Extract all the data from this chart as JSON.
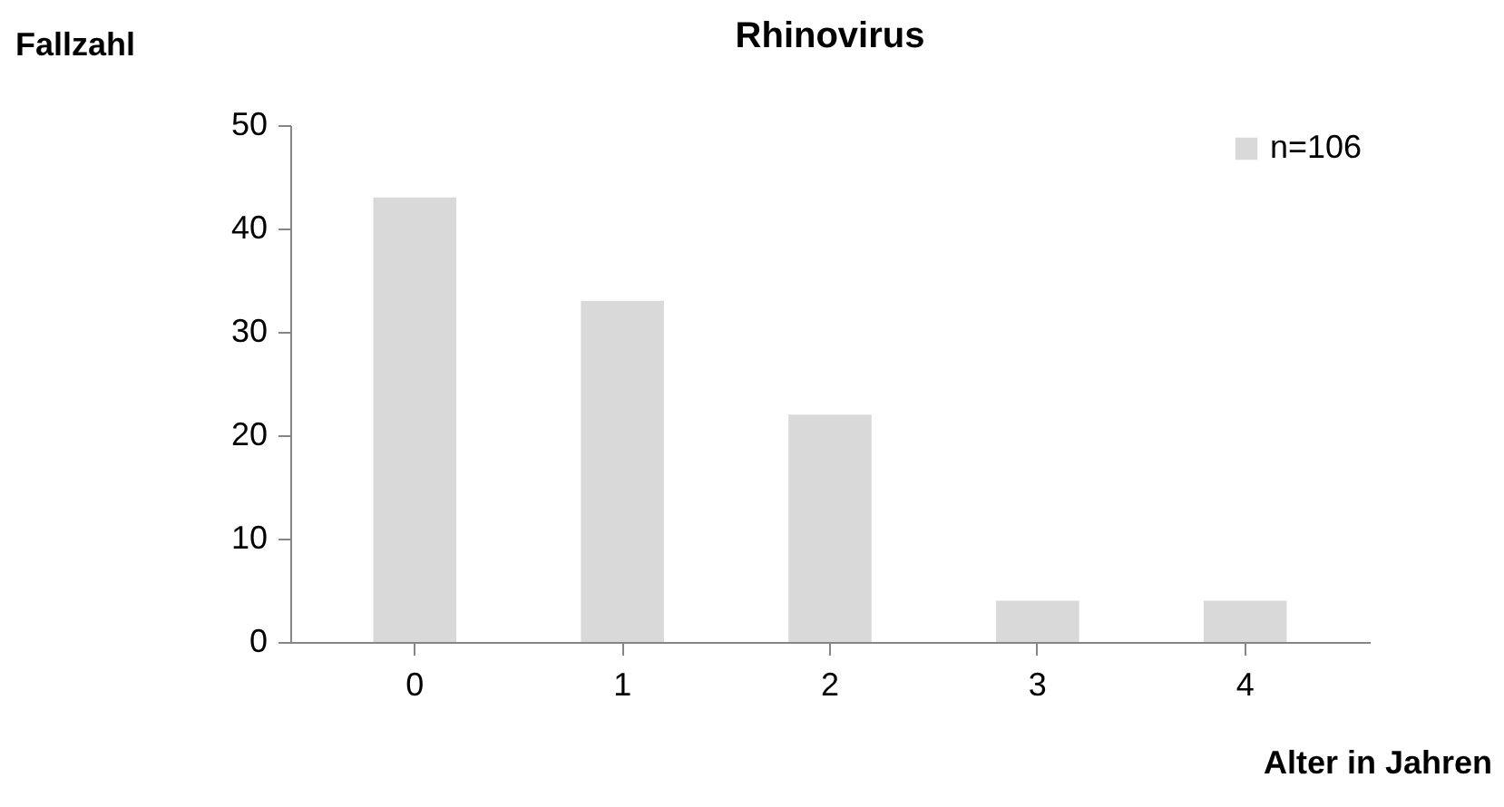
{
  "chart_data": {
    "type": "bar",
    "title": "Rhinovirus",
    "xlabel": "Alter in Jahren",
    "ylabel": "Fallzahl",
    "categories": [
      "0",
      "1",
      "2",
      "3",
      "4"
    ],
    "series": [
      {
        "name": "n=106",
        "color": "#d9d9d9",
        "values": [
          43,
          33,
          22,
          4,
          4
        ]
      }
    ],
    "ylim": [
      0,
      50
    ],
    "yticks": [
      0,
      10,
      20,
      30,
      40,
      50
    ],
    "grid": false,
    "legend": "top right"
  }
}
